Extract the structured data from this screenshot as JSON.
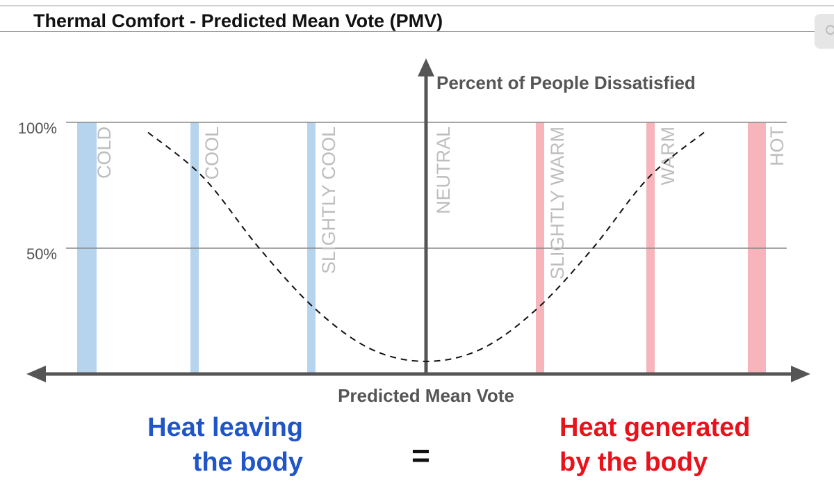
{
  "title": "Thermal Comfort - Predicted Mean Vote (PMV)",
  "chart_data": {
    "type": "line",
    "ylabel": "Percent of People Dissatisfied",
    "xlabel": "Predicted Mean Vote",
    "yticks": [
      "100%",
      "50%"
    ],
    "ytick_values": [
      100,
      50
    ],
    "ylim": [
      0,
      100
    ],
    "xlim": [
      -3.5,
      3.5
    ],
    "grid": "horizontal",
    "categories": [
      {
        "label": "COLD",
        "pmv": -3,
        "color": "#b7d4ef"
      },
      {
        "label": "COOL",
        "pmv": -2,
        "color": "#b7d4ef"
      },
      {
        "label": "SLIGHTLY COOL",
        "pmv": -1,
        "color": "#b7d4ef"
      },
      {
        "label": "NEUTRAL",
        "pmv": 0,
        "color": "#d0d0d0"
      },
      {
        "label": "SLIGHTLY WARM",
        "pmv": 1,
        "color": "#f8b4bb"
      },
      {
        "label": "WARM",
        "pmv": 2,
        "color": "#f8b4bb"
      },
      {
        "label": "HOT",
        "pmv": 3,
        "color": "#f8b4bb"
      }
    ],
    "series": [
      {
        "style": "dashed",
        "x": [
          -2.5,
          -2.0,
          -1.5,
          -1.0,
          -0.5,
          0.0,
          0.5,
          1.0,
          1.5,
          2.0,
          2.5
        ],
        "y": [
          96,
          78,
          50,
          26,
          10,
          5,
          10,
          26,
          50,
          78,
          96
        ]
      }
    ]
  },
  "equation": {
    "left": [
      "Heat leaving",
      "the body"
    ],
    "sign": "=",
    "right": [
      "Heat generated",
      "by the body"
    ],
    "left_color": "#1f55c7",
    "right_color": "#e8121b"
  }
}
